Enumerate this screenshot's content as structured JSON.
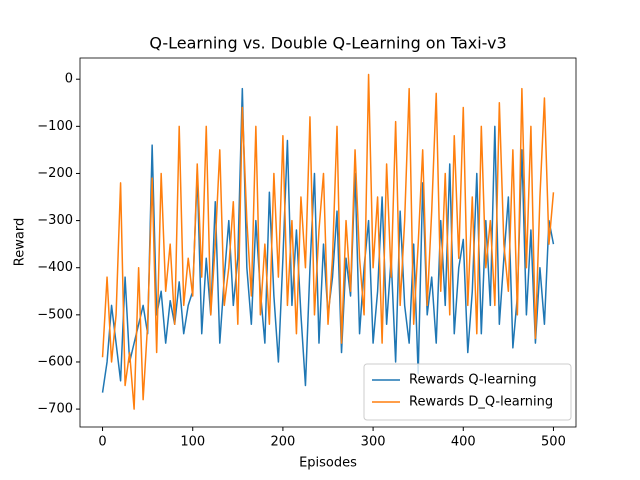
{
  "chart_data": {
    "type": "line",
    "title": "Q-Learning vs. Double Q-Learning on Taxi-v3",
    "x_label": "Episodes",
    "y_label": "Reward",
    "x": [
      0,
      5,
      10,
      15,
      20,
      25,
      30,
      35,
      40,
      45,
      50,
      55,
      60,
      65,
      70,
      75,
      80,
      85,
      90,
      95,
      100,
      105,
      110,
      115,
      120,
      125,
      130,
      135,
      140,
      145,
      150,
      155,
      160,
      165,
      170,
      175,
      180,
      185,
      190,
      195,
      200,
      205,
      210,
      215,
      220,
      225,
      230,
      235,
      240,
      245,
      250,
      255,
      260,
      265,
      270,
      275,
      280,
      285,
      290,
      295,
      300,
      305,
      310,
      315,
      320,
      325,
      330,
      335,
      340,
      345,
      350,
      355,
      360,
      365,
      370,
      375,
      380,
      385,
      390,
      395,
      400,
      405,
      410,
      415,
      420,
      425,
      430,
      435,
      440,
      445,
      450,
      455,
      460,
      465,
      470,
      475,
      480,
      485,
      490,
      495,
      500
    ],
    "series": [
      {
        "name": "Rewards Q-learning",
        "color": "#1f77b4",
        "values": [
          -665,
          -600,
          -480,
          -560,
          -640,
          -420,
          -600,
          -560,
          -520,
          -480,
          -540,
          -140,
          -500,
          -450,
          -560,
          -470,
          -520,
          -430,
          -540,
          -480,
          -450,
          -200,
          -540,
          -380,
          -500,
          -260,
          -560,
          -420,
          -300,
          -480,
          -380,
          -20,
          -400,
          -520,
          -300,
          -450,
          -560,
          -240,
          -460,
          -600,
          -380,
          -130,
          -480,
          -320,
          -500,
          -650,
          -400,
          -200,
          -560,
          -350,
          -500,
          -420,
          -280,
          -580,
          -380,
          -460,
          -200,
          -540,
          -400,
          -300,
          -560,
          -450,
          -250,
          -520,
          -380,
          -600,
          -280,
          -480,
          -560,
          -350,
          -625,
          -220,
          -500,
          -420,
          -560,
          -300,
          -480,
          -180,
          -540,
          -400,
          -340,
          -580,
          -450,
          -200,
          -540,
          -300,
          -480,
          -100,
          -520,
          -380,
          -250,
          -570,
          -460,
          -150,
          -500,
          -320,
          -560,
          -400,
          -520,
          -300,
          -350
        ]
      },
      {
        "name": "Rewards D_Q-learning",
        "color": "#ff7f0e",
        "values": [
          -590,
          -420,
          -600,
          -500,
          -220,
          -650,
          -580,
          -700,
          -400,
          -680,
          -520,
          -210,
          -580,
          -200,
          -450,
          -350,
          -520,
          -100,
          -480,
          -380,
          -460,
          -180,
          -420,
          -100,
          -500,
          -350,
          -150,
          -480,
          -400,
          -260,
          -520,
          -60,
          -300,
          -460,
          -100,
          -500,
          -350,
          -520,
          -200,
          -420,
          -120,
          -480,
          -300,
          -540,
          -250,
          -400,
          -80,
          -500,
          -320,
          -200,
          -520,
          -380,
          -100,
          -560,
          -300,
          -450,
          -150,
          -380,
          -500,
          10,
          -400,
          -250,
          -560,
          -180,
          -420,
          -90,
          -480,
          -300,
          -20,
          -520,
          -350,
          -150,
          -480,
          -280,
          -30,
          -450,
          -200,
          -500,
          -120,
          -380,
          -60,
          -480,
          -250,
          -540,
          -100,
          -400,
          -300,
          -480,
          -50,
          -350,
          -450,
          -150,
          -500,
          -20,
          -400,
          -100,
          -550,
          -250,
          -40,
          -350,
          -240
        ]
      }
    ],
    "xlim": [
      -25,
      525
    ],
    "ylim": [
      -738,
      45
    ],
    "xticks": [
      0,
      100,
      200,
      300,
      400,
      500
    ],
    "yticks": [
      {
        "value": -700,
        "label": "−700"
      },
      {
        "value": -600,
        "label": "−600"
      },
      {
        "value": -500,
        "label": "−500"
      },
      {
        "value": -400,
        "label": "−400"
      },
      {
        "value": -300,
        "label": "−300"
      },
      {
        "value": -200,
        "label": "−200"
      },
      {
        "value": -100,
        "label": "−100"
      },
      0
    ],
    "legend": "lower right"
  }
}
